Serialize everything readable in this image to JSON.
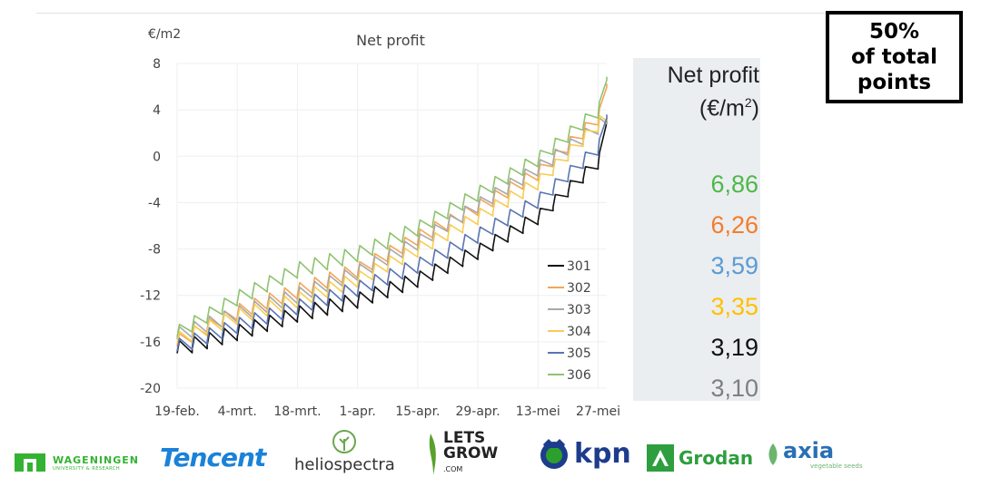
{
  "chart_data": {
    "type": "line",
    "title": "Net profit",
    "ylabel": "€/m2",
    "ylim": [
      -20,
      8
    ],
    "yticks": [
      8,
      4,
      0,
      -4,
      -8,
      -12,
      -16,
      -20
    ],
    "x_tick_labels": [
      "19-feb.",
      "4-mrt.",
      "18-mrt.",
      "1-apr.",
      "15-apr.",
      "29-apr.",
      "13-mei",
      "27-mei"
    ],
    "x_tick_positions": [
      0,
      14,
      28,
      42,
      56,
      70,
      84,
      98
    ],
    "xlim": [
      0,
      100
    ],
    "grid": "vertical-and-horizontal",
    "legend_position": "bottom-right",
    "series": [
      {
        "name": "301",
        "color": "#111111",
        "x": [
          0,
          14,
          28,
          42,
          56,
          70,
          84,
          98,
          100
        ],
        "values": [
          -17.0,
          -15.6,
          -14.0,
          -12.8,
          -11.0,
          -8.6,
          -5.6,
          -0.8,
          3.19
        ]
      },
      {
        "name": "302",
        "color": "#f2a65a",
        "x": [
          0,
          14,
          28,
          42,
          56,
          70,
          84,
          98,
          100
        ],
        "values": [
          -16.4,
          -13.8,
          -12.0,
          -10.2,
          -7.4,
          -4.8,
          -1.8,
          3.0,
          6.26
        ]
      },
      {
        "name": "303",
        "color": "#a9a9a9",
        "x": [
          0,
          14,
          28,
          42,
          56,
          70,
          84,
          98,
          100
        ],
        "values": [
          -15.8,
          -14.0,
          -12.4,
          -10.4,
          -7.8,
          -4.6,
          -1.4,
          2.2,
          3.1
        ]
      },
      {
        "name": "304",
        "color": "#f7cd55",
        "x": [
          0,
          14,
          28,
          42,
          56,
          70,
          84,
          98,
          100
        ],
        "values": [
          -16.2,
          -14.2,
          -12.8,
          -11.0,
          -8.4,
          -5.6,
          -2.6,
          2.4,
          3.35
        ]
      },
      {
        "name": "305",
        "color": "#5a74b4",
        "x": [
          0,
          14,
          28,
          42,
          56,
          70,
          84,
          98,
          100
        ],
        "values": [
          -16.8,
          -15.0,
          -13.4,
          -11.8,
          -9.8,
          -7.2,
          -4.2,
          0.4,
          3.59
        ]
      },
      {
        "name": "306",
        "color": "#8fc36f",
        "x": [
          0,
          14,
          28,
          42,
          56,
          70,
          84,
          98,
          100
        ],
        "values": [
          -15.6,
          -12.6,
          -10.2,
          -8.8,
          -6.6,
          -3.6,
          -0.6,
          3.6,
          6.86
        ]
      }
    ]
  },
  "panel": {
    "title_line1": "Net profit",
    "title_line2_pre": "(€/m",
    "title_sup": "2",
    "title_line2_post": ")",
    "values": [
      {
        "text": "6,86",
        "color": "#4db84a"
      },
      {
        "text": "6,26",
        "color": "#f47c2c"
      },
      {
        "text": "3,59",
        "color": "#5b9bd5"
      },
      {
        "text": "3,35",
        "color": "#ffc000"
      },
      {
        "text": "3,19",
        "color": "#111111"
      },
      {
        "text": "3,10",
        "color": "#7f7f7f"
      }
    ]
  },
  "badge": {
    "line1": "50%",
    "line2": "of total",
    "line3": "points"
  },
  "logos": {
    "wageningen": {
      "name": "WAGENINGEN",
      "sub": "UNIVERSITY & RESEARCH",
      "color": "#34b233"
    },
    "tencent": {
      "name": "Tencent",
      "color": "#1a82d8"
    },
    "heliospectra": {
      "name": "heliospectra",
      "color": "#333333",
      "icon_color": "#6aa84f"
    },
    "letsgrow": {
      "line1": "LETS",
      "line2": "GROW",
      "line3": ".COM",
      "color": "#222222",
      "icon_color": "#5aa02c"
    },
    "kpn": {
      "name": "kpn",
      "color": "#1e3c8c",
      "icon_color": "#2ca02c"
    },
    "grodan": {
      "name": "Grodan",
      "color": "#2e9e3e"
    },
    "axia": {
      "name": "axia",
      "sub": "vegetable seeds",
      "color": "#2a6fb5",
      "sub_color": "#6bb56f"
    }
  }
}
